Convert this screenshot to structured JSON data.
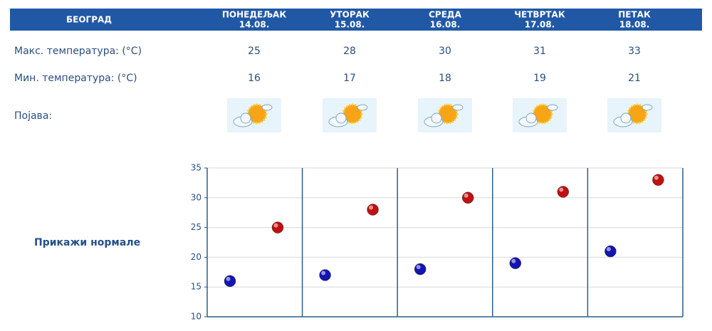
{
  "header": {
    "city": "БЕОГРАД",
    "days": [
      {
        "name": "ПОНЕДЕЉАК",
        "date": "14.08."
      },
      {
        "name": "УТОРАК",
        "date": "15.08."
      },
      {
        "name": "СРЕДА",
        "date": "16.08."
      },
      {
        "name": "ЧЕТВРТАК",
        "date": "17.08."
      },
      {
        "name": "ПЕТАК",
        "date": "18.08."
      }
    ]
  },
  "rows": [
    {
      "label": "Макс. температура: (°C)",
      "values": [
        25,
        28,
        30,
        31,
        33
      ]
    },
    {
      "label": "Мин. температура: (°C)",
      "values": [
        16,
        17,
        18,
        19,
        21
      ]
    },
    {
      "label": "Појава:"
    }
  ],
  "link": "Прикажи нормале",
  "chart_data": {
    "type": "scatter",
    "series": [
      {
        "color": "#1414b4",
        "values": [
          16,
          17,
          18,
          19,
          21
        ]
      },
      {
        "color": "#c01010",
        "values": [
          25,
          28,
          30,
          31,
          33
        ]
      }
    ],
    "ylim": [
      10,
      35
    ],
    "yticks": [
      10,
      15,
      20,
      25,
      30,
      35
    ],
    "grid": true
  }
}
